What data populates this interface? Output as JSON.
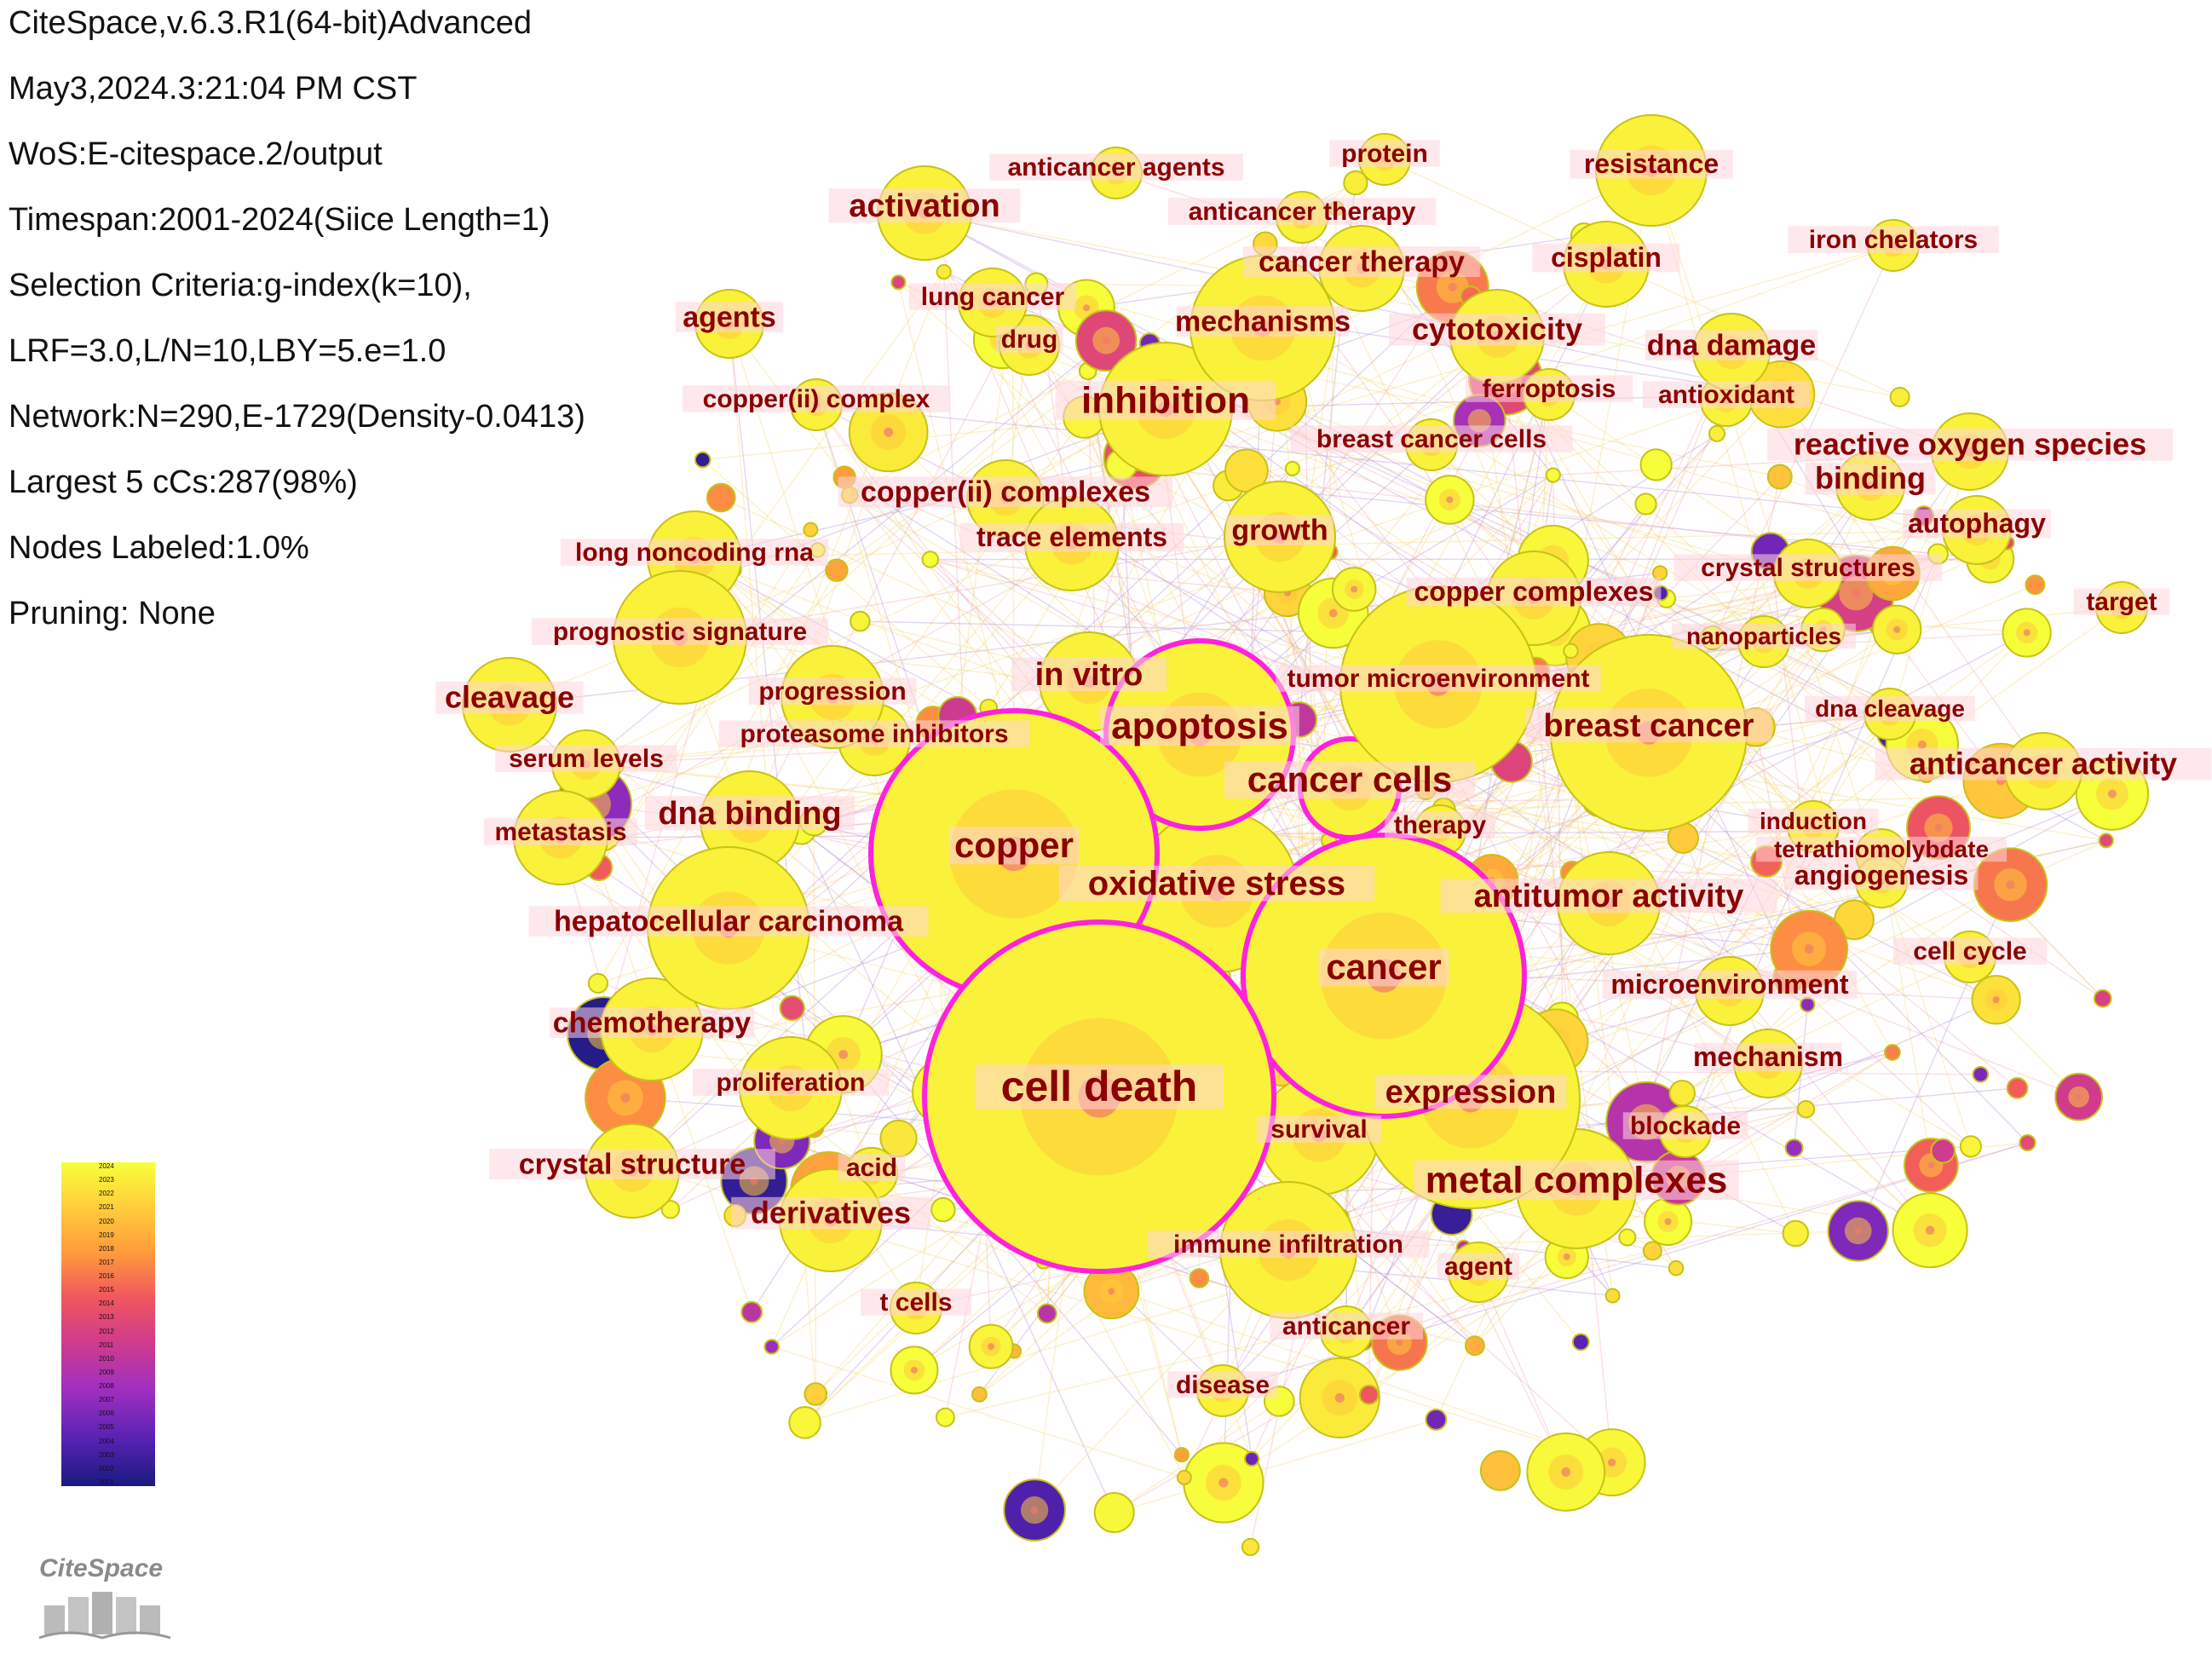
{
  "info": {
    "lines": [
      "CiteSpace,v.6.3.R1(64-bit)Advanced",
      "May3,2024.3:21:04 PM CST",
      "WoS:E-citespace.2/output",
      "Timespan:2001-2024(Siice Length=1)",
      "Selection Criteria:g-index(k=10),",
      "LRF=3.0,L/N=10,LBY=5.e=1.0",
      "Network:N=290,E-1729(Density-0.0413)",
      "Largest 5 cCs:287(98%)",
      "Nodes Labeled:1.0%",
      "Pruning: None"
    ]
  },
  "legend": {
    "years": [
      "2024",
      "2023",
      "2022",
      "2021",
      "2020",
      "2019",
      "2018",
      "2017",
      "2016",
      "2015",
      "2014",
      "2013",
      "2012",
      "2011",
      "2010",
      "2009",
      "2008",
      "2007",
      "2006",
      "2005",
      "2004",
      "2003",
      "2002",
      "2001"
    ]
  },
  "logo": {
    "text": "CiteSpace"
  },
  "keywords": [
    "cell death",
    "copper",
    "apoptosis",
    "cancer",
    "cancer cells",
    "oxidative stress",
    "expression",
    "metal complexes",
    "in vitro",
    "inhibition",
    "breast cancer",
    "antitumor activity",
    "hepatocellular carcinoma",
    "dna binding",
    "cleavage",
    "activation",
    "mechanisms",
    "cytotoxicity",
    "cancer therapy",
    "copper(ii) complexes",
    "reactive oxygen species",
    "anticancer activity",
    "derivatives",
    "crystal structure",
    "chemotherapy",
    "resistance",
    "binding",
    "growth",
    "trace elements",
    "dna damage",
    "cisplatin",
    "agents",
    "tumor microenvironment",
    "copper complexes",
    "autophagy",
    "microenvironment",
    "mechanism",
    "proliferation",
    "prognostic signature",
    "progression",
    "proteasome inhibitors",
    "serum levels",
    "metastasis",
    "long noncoding rna",
    "copper(ii) complex",
    "lung cancer",
    "drug",
    "anticancer agents",
    "anticancer therapy",
    "protein",
    "iron chelators",
    "ferroptosis",
    "antioxidant",
    "breast cancer cells",
    "crystal structures",
    "target",
    "nanoparticles",
    "dna cleavage",
    "induction",
    "tetrathiomolybdate",
    "angiogenesis",
    "cell cycle",
    "blockade",
    "therapy",
    "survival",
    "immune infiltration",
    "agent",
    "anticancer",
    "disease",
    "t cells",
    "acid"
  ]
}
